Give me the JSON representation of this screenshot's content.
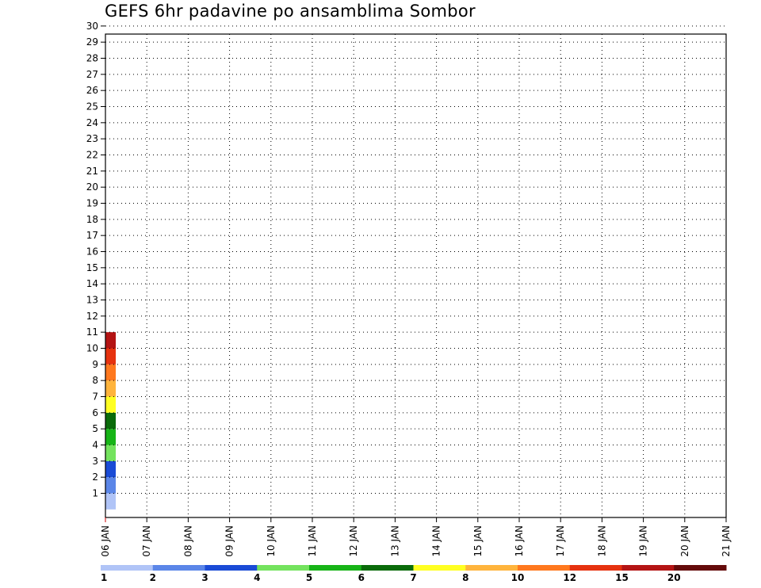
{
  "chart_data": {
    "type": "heatmap",
    "title": "GEFS 6hr padavine po ansamblima Sombor",
    "x_tick_labels": [
      "06 JAN",
      "07 JAN",
      "08 JAN",
      "09 JAN",
      "10 JAN",
      "11 JAN",
      "12 JAN",
      "13 JAN",
      "14 JAN",
      "15 JAN",
      "16 JAN",
      "17 JAN",
      "18 JAN",
      "19 JAN",
      "20 JAN",
      "21 JAN"
    ],
    "y_tick_labels": [
      "1",
      "2",
      "3",
      "4",
      "5",
      "6",
      "7",
      "8",
      "9",
      "10",
      "11",
      "12",
      "13",
      "14",
      "15",
      "16",
      "17",
      "18",
      "19",
      "20",
      "21",
      "22",
      "23",
      "24",
      "25",
      "26",
      "27",
      "28",
      "29",
      "30"
    ],
    "x_range_days": [
      0,
      15
    ],
    "y_range": [
      0,
      30
    ],
    "grid": true,
    "grid_style": "dotted",
    "legend": {
      "placement": "bottom",
      "labels": [
        "1",
        "2",
        "3",
        "4",
        "5",
        "6",
        "7",
        "8",
        "10",
        "12",
        "15",
        "20"
      ],
      "colors": [
        "#b0c4f7",
        "#5b86e8",
        "#1a4bd6",
        "#74e35e",
        "#17b417",
        "#0a6b0a",
        "#ffff22",
        "#ffb43c",
        "#ff781e",
        "#e6320f",
        "#b41414",
        "#640a0a"
      ]
    },
    "cells": [
      [
        0,
        1,
        1
      ],
      [
        0,
        2,
        2
      ],
      [
        0,
        3,
        3
      ],
      [
        0,
        4,
        4
      ],
      [
        0,
        5,
        5
      ],
      [
        0,
        6,
        6
      ],
      [
        0,
        7,
        7
      ],
      [
        0,
        8,
        8
      ],
      [
        0,
        9,
        9
      ],
      [
        0,
        10,
        10
      ],
      [
        0,
        11,
        11
      ]
    ]
  }
}
